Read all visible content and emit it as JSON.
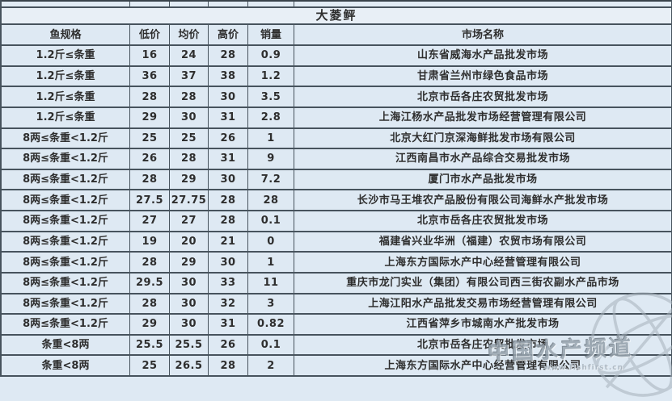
{
  "chart_data": {
    "type": "table",
    "title": "大菱鲆",
    "columns": [
      "鱼规格",
      "低价",
      "均价",
      "高价",
      "销量",
      "市场名称"
    ],
    "rows": [
      [
        "1.2斤≤条重",
        "16",
        "24",
        "28",
        "0.9",
        "山东省威海水产品批发市场"
      ],
      [
        "1.2斤≤条重",
        "36",
        "37",
        "38",
        "1.2",
        "甘肃省兰州市绿色食品市场"
      ],
      [
        "1.2斤≤条重",
        "28",
        "28",
        "30",
        "3.5",
        "北京市岳各庄农贸批发市场"
      ],
      [
        "1.2斤≤条重",
        "29",
        "30",
        "31",
        "2.8",
        "上海江杨水产品批发市场经营管理有限公司"
      ],
      [
        "8两≤条重<1.2斤",
        "25",
        "25",
        "26",
        "1",
        "北京大红门京深海鲜批发市场有限公司"
      ],
      [
        "8两≤条重<1.2斤",
        "26",
        "28",
        "31",
        "9",
        "江西南昌市水产品综合交易批发市场"
      ],
      [
        "8两≤条重<1.2斤",
        "28",
        "29",
        "30",
        "7.2",
        "厦门市水产品批发市场"
      ],
      [
        "8两≤条重<1.2斤",
        "27.5",
        "27.75",
        "28",
        "28",
        "长沙市马王堆农产品股份有限公司海鲜水产批发市场"
      ],
      [
        "8两≤条重<1.2斤",
        "27",
        "27",
        "28",
        "0.1",
        "北京市岳各庄农贸批发市场"
      ],
      [
        "8两≤条重<1.2斤",
        "19",
        "20",
        "21",
        "0",
        "福建省兴业华洲（福建）农贸市场有限公司"
      ],
      [
        "8两≤条重<1.2斤",
        "28",
        "29",
        "30",
        "1",
        "上海东方国际水产中心经营管理有限公司"
      ],
      [
        "8两≤条重<1.2斤",
        "29.5",
        "30",
        "33",
        "11",
        "重庆市龙门实业（集团）有限公司西三街农副水产品市场"
      ],
      [
        "8两≤条重<1.2斤",
        "28",
        "30",
        "32",
        "3",
        "上海江阳水产品批发交易市场经营管理有限公司"
      ],
      [
        "8两≤条重<1.2斤",
        "29",
        "30",
        "31",
        "0.82",
        "江西省萍乡市城南水产批发市场"
      ],
      [
        "条重<8两",
        "25.5",
        "25.5",
        "26",
        "0.1",
        "北京市岳各庄农贸批发市场"
      ],
      [
        "条重<8两",
        "25",
        "26.5",
        "28",
        "2",
        "上海东方国际水产中心经营管理有限公司"
      ]
    ]
  },
  "watermark": {
    "brand": "中国水产频道",
    "url": "www.fishfirst.cn",
    "icon": "globe-icon"
  },
  "colors": {
    "row_bg": "#dee9f3",
    "title_bg": "#e8eff6",
    "border": "#47535d",
    "text": "#2e2e2e",
    "watermark_gray": "#97a3ad"
  }
}
